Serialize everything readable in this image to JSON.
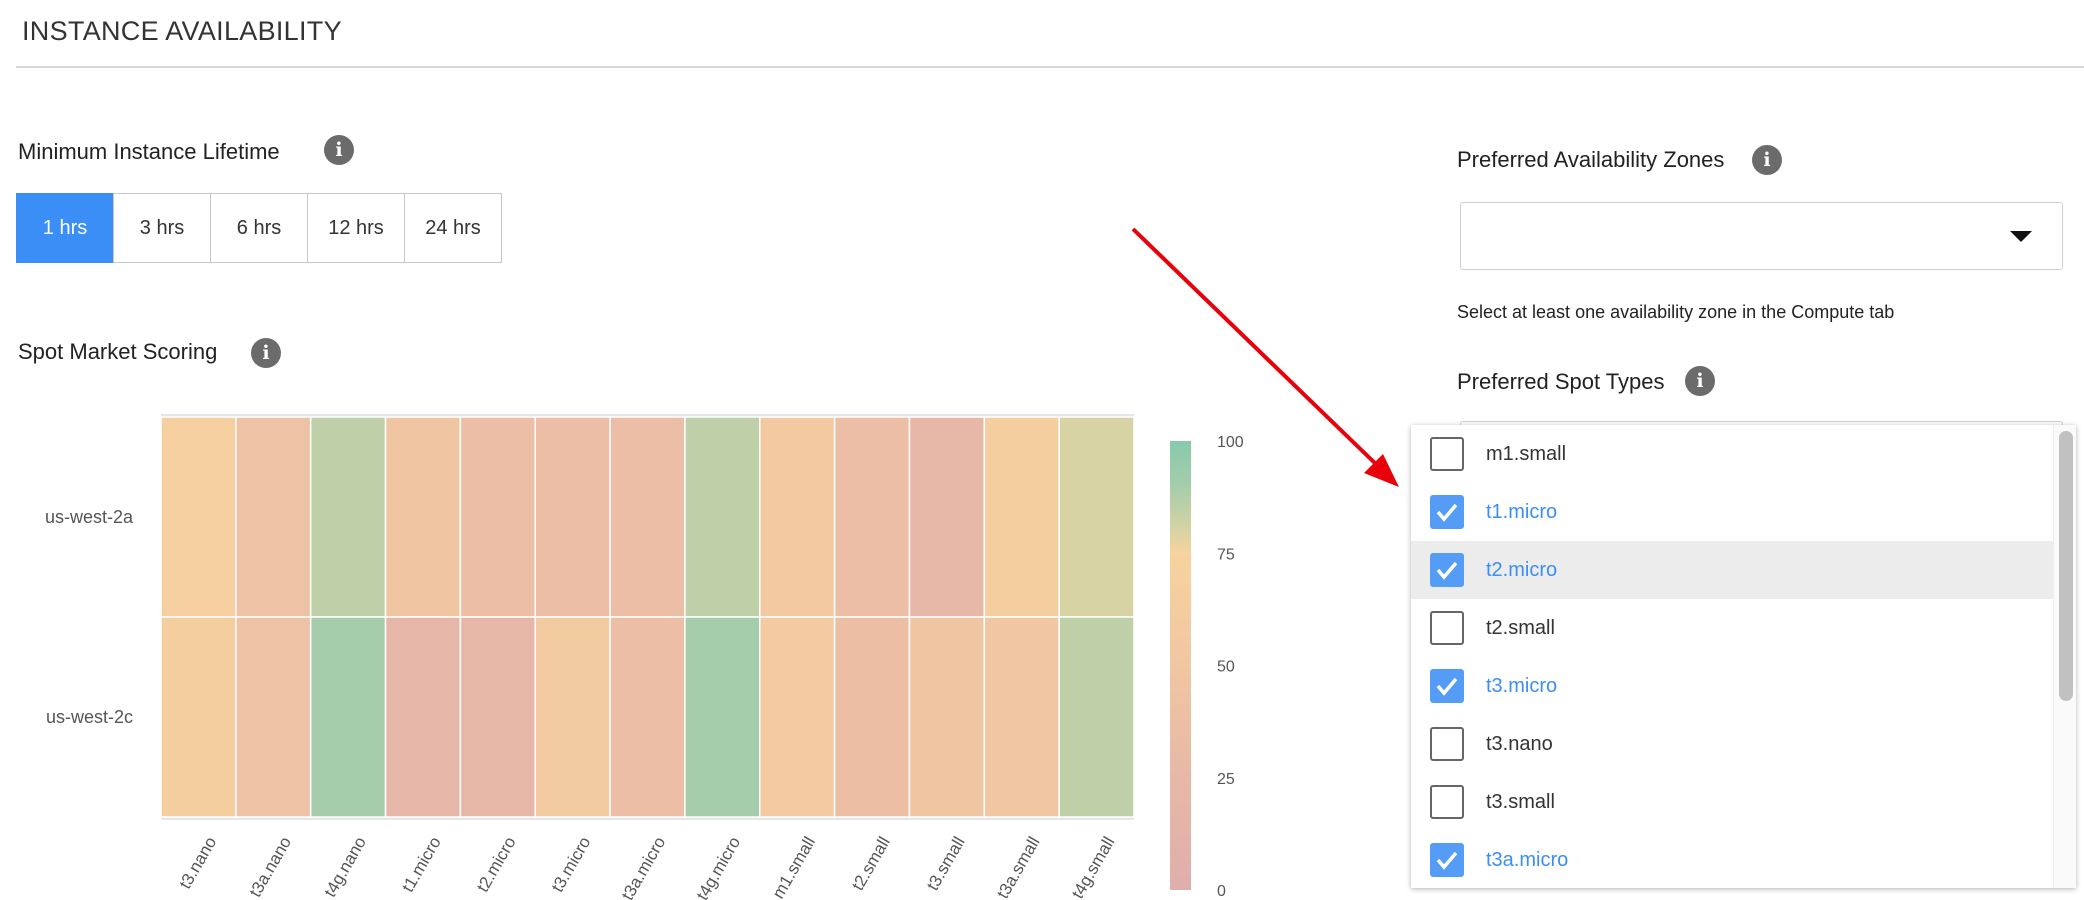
{
  "section_title": "INSTANCE AVAILABILITY",
  "lifetime": {
    "label": "Minimum Instance Lifetime",
    "options": [
      "1 hrs",
      "3 hrs",
      "6 hrs",
      "12 hrs",
      "24 hrs"
    ],
    "selected": "1 hrs"
  },
  "scoring": {
    "label": "Spot Market Scoring"
  },
  "zones": {
    "label": "Preferred Availability Zones",
    "value": "",
    "helper": "Select at least one availability zone in the Compute tab"
  },
  "spot_types": {
    "label": "Preferred Spot Types",
    "items": [
      {
        "label": "m1.small",
        "checked": false
      },
      {
        "label": "t1.micro",
        "checked": true
      },
      {
        "label": "t2.micro",
        "checked": true,
        "highlighted": true
      },
      {
        "label": "t2.small",
        "checked": false
      },
      {
        "label": "t3.micro",
        "checked": true
      },
      {
        "label": "t3.nano",
        "checked": false
      },
      {
        "label": "t3.small",
        "checked": false
      },
      {
        "label": "t3a.micro",
        "checked": true
      }
    ]
  },
  "colors": {
    "accent": "#3b8ef5",
    "checkbox": "#559cf7",
    "arrow": "#e8000b"
  },
  "chart_data": {
    "type": "heatmap",
    "x": [
      "t3.nano",
      "t3a.nano",
      "t4g.nano",
      "t1.micro",
      "t2.micro",
      "t3.micro",
      "t3a.micro",
      "t4g.micro",
      "m1.small",
      "t2.small",
      "t3.small",
      "t3a.small",
      "t4g.small"
    ],
    "y": [
      "us-west-2a",
      "us-west-2c"
    ],
    "z": [
      [
        68,
        42,
        85,
        48,
        35,
        35,
        35,
        85,
        55,
        35,
        25,
        65,
        80
      ],
      [
        65,
        42,
        90,
        20,
        22,
        60,
        35,
        90,
        58,
        38,
        48,
        50,
        85
      ]
    ],
    "zlim": [
      0,
      100
    ],
    "colorbar_ticks": [
      0,
      25,
      50,
      75,
      100
    ],
    "colorscale": [
      [
        0,
        "#e0aeab"
      ],
      [
        25,
        "#e7b8a7"
      ],
      [
        50,
        "#f1c6a2"
      ],
      [
        75,
        "#f7d39f"
      ],
      [
        80,
        "#d8d3a4"
      ],
      [
        90,
        "#a5cdab"
      ],
      [
        100,
        "#87c9ad"
      ]
    ]
  }
}
